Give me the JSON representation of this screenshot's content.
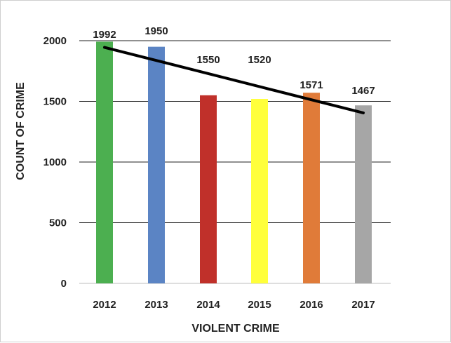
{
  "chart_data": {
    "type": "bar",
    "categories": [
      "2012",
      "2013",
      "2014",
      "2015",
      "2016",
      "2017"
    ],
    "values": [
      1992,
      1950,
      1550,
      1520,
      1571,
      1467
    ],
    "data_labels": [
      "1992",
      "1950",
      "1550",
      "1520",
      "1571",
      "1467"
    ],
    "bar_colors": [
      "#4caf50",
      "#5b84c4",
      "#c0302a",
      "#ffff3b",
      "#e07b39",
      "#a6a6a6"
    ],
    "xlabel": "VIOLENT CRIME",
    "ylabel": "COUNT OF CRIME",
    "ylim": [
      0,
      2000
    ],
    "yticks": [
      0,
      500,
      1000,
      1500,
      2000
    ],
    "ytick_labels": [
      "0",
      "500",
      "1000",
      "1500",
      "2000"
    ],
    "grid": true,
    "trendline": {
      "type": "linear",
      "color": "#000000",
      "start": 1945,
      "end": 1405
    }
  }
}
